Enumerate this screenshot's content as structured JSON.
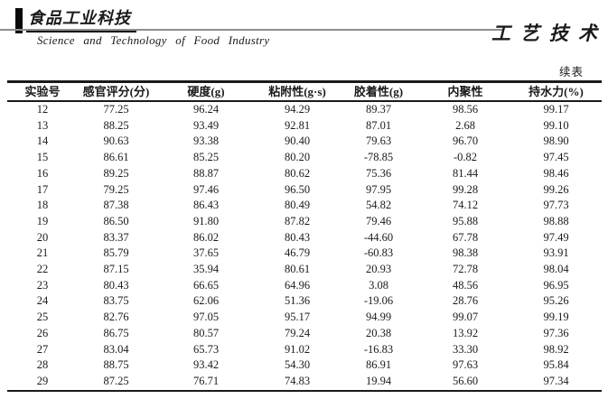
{
  "header": {
    "logo_cn": "食品工业科技",
    "journal_en": "Science and Technology of Food Industry",
    "section_title": "工艺技术",
    "continued_label": "续表"
  },
  "table": {
    "columns": [
      "实验号",
      "感官评分(分)",
      "硬度(g)",
      "粘附性(g·s)",
      "胶着性(g)",
      "内聚性",
      "持水力(%)"
    ],
    "rows": [
      [
        "12",
        "77.25",
        "96.24",
        "94.29",
        "89.37",
        "98.56",
        "99.17"
      ],
      [
        "13",
        "88.25",
        "93.49",
        "92.81",
        "87.01",
        "2.68",
        "99.10"
      ],
      [
        "14",
        "90.63",
        "93.38",
        "90.40",
        "79.63",
        "96.70",
        "98.90"
      ],
      [
        "15",
        "86.61",
        "85.25",
        "80.20",
        "-78.85",
        "-0.82",
        "97.45"
      ],
      [
        "16",
        "89.25",
        "88.87",
        "80.62",
        "75.36",
        "81.44",
        "98.46"
      ],
      [
        "17",
        "79.25",
        "97.46",
        "96.50",
        "97.95",
        "99.28",
        "99.26"
      ],
      [
        "18",
        "87.38",
        "86.43",
        "80.49",
        "54.82",
        "74.12",
        "97.73"
      ],
      [
        "19",
        "86.50",
        "91.80",
        "87.82",
        "79.46",
        "95.88",
        "98.88"
      ],
      [
        "20",
        "83.37",
        "86.02",
        "80.43",
        "-44.60",
        "67.78",
        "97.49"
      ],
      [
        "21",
        "85.79",
        "37.65",
        "46.79",
        "-60.83",
        "98.38",
        "93.91"
      ],
      [
        "22",
        "87.15",
        "35.94",
        "80.61",
        "20.93",
        "72.78",
        "98.04"
      ],
      [
        "23",
        "80.43",
        "66.65",
        "64.96",
        "3.08",
        "48.56",
        "96.95"
      ],
      [
        "24",
        "83.75",
        "62.06",
        "51.36",
        "-19.06",
        "28.76",
        "95.26"
      ],
      [
        "25",
        "82.76",
        "97.05",
        "95.17",
        "94.99",
        "99.07",
        "99.19"
      ],
      [
        "26",
        "86.75",
        "80.57",
        "79.24",
        "20.38",
        "13.92",
        "97.36"
      ],
      [
        "27",
        "83.04",
        "65.73",
        "91.02",
        "-16.83",
        "33.30",
        "98.92"
      ],
      [
        "28",
        "88.75",
        "93.42",
        "54.30",
        "86.91",
        "97.63",
        "95.84"
      ],
      [
        "29",
        "87.25",
        "76.71",
        "74.83",
        "19.94",
        "56.60",
        "97.34"
      ]
    ]
  }
}
